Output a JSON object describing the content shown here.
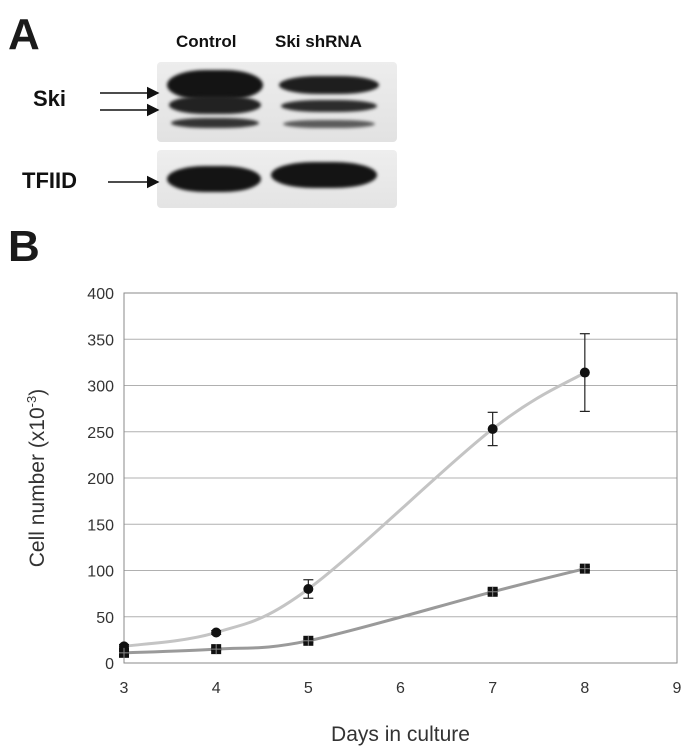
{
  "panel_a": {
    "letter": "A",
    "lanes": [
      "Control",
      "Ski shRNA"
    ],
    "rows": [
      {
        "label": "Ski",
        "arrows": 2
      },
      {
        "label": "TFIID",
        "arrows": 1
      }
    ]
  },
  "panel_b": {
    "letter": "B"
  },
  "chart_data": {
    "type": "line",
    "xlabel": "Days in culture",
    "ylabel": "Cell number (x10",
    "ylabel_sup": "-3",
    "ylabel_end": ")",
    "xlim": [
      3,
      9
    ],
    "ylim": [
      0,
      400
    ],
    "xticks": [
      3,
      4,
      5,
      6,
      7,
      8,
      9
    ],
    "yticks": [
      0,
      50,
      100,
      150,
      200,
      250,
      300,
      350,
      400
    ],
    "grid": "horizontal",
    "legend": "none",
    "series": [
      {
        "marker": "circle",
        "line_color": "#c4c4c4",
        "x": [
          3,
          4,
          5,
          7,
          8
        ],
        "y": [
          18,
          33,
          80,
          253,
          314
        ],
        "err": [
          2,
          2,
          10,
          18,
          42
        ]
      },
      {
        "marker": "square",
        "line_color": "#9a9a9a",
        "x": [
          3,
          4,
          5,
          7,
          8
        ],
        "y": [
          11,
          15,
          24,
          77,
          102
        ],
        "err": [
          1,
          1,
          2,
          3,
          2
        ]
      }
    ]
  }
}
